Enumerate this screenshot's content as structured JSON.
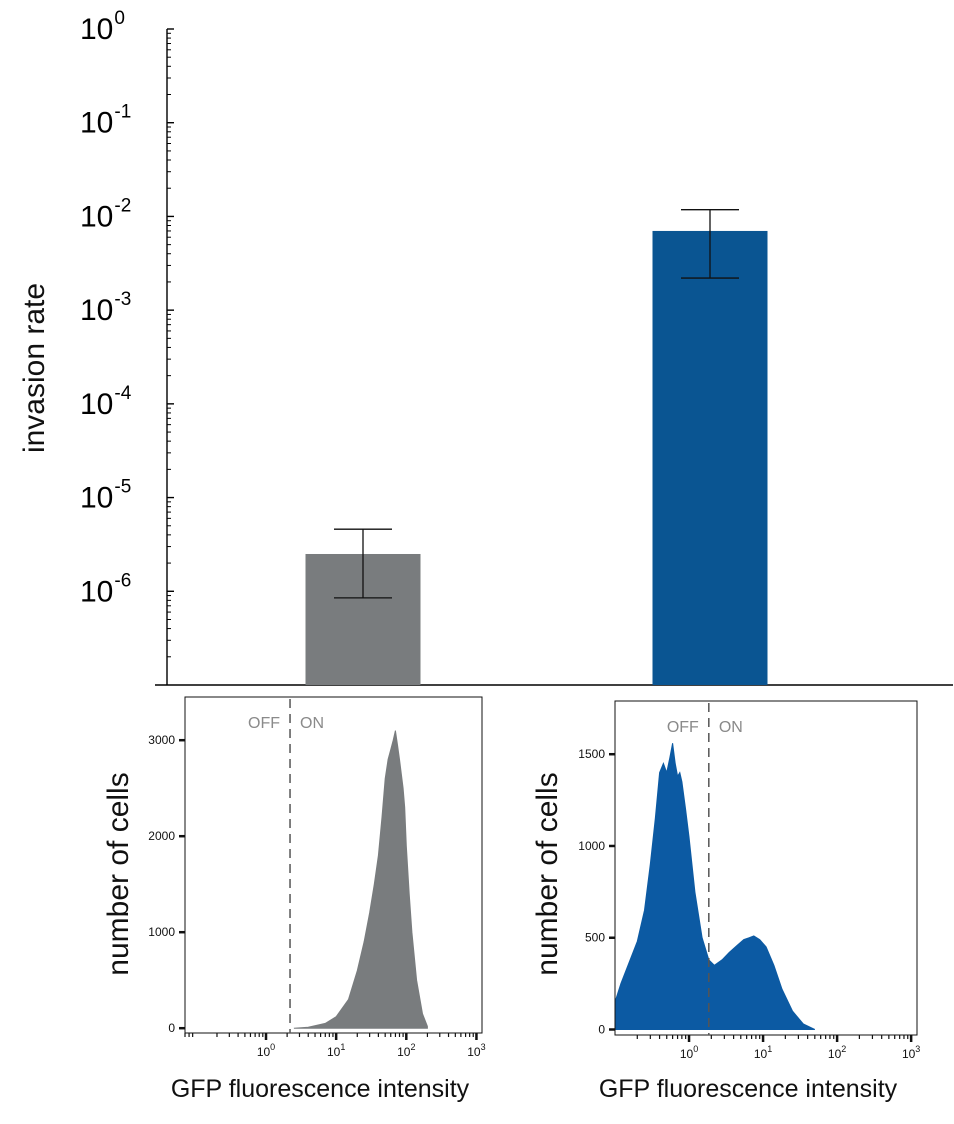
{
  "chart_data": [
    {
      "type": "bar",
      "ylabel": "invasion rate",
      "yscale": "log",
      "ylim": [
        1e-07,
        1
      ],
      "ytick_labels": [
        {
          "base": "10",
          "exp": "0"
        },
        {
          "base": "10",
          "exp": "-1"
        },
        {
          "base": "10",
          "exp": "-2"
        },
        {
          "base": "10",
          "exp": "-3"
        },
        {
          "base": "10",
          "exp": "-4"
        },
        {
          "base": "10",
          "exp": "-5"
        },
        {
          "base": "10",
          "exp": "-6"
        }
      ],
      "ytick_values": [
        1,
        0.1,
        0.01,
        0.001,
        0.0001,
        1e-05,
        1e-06
      ],
      "bars": [
        {
          "value": 2.5e-06,
          "err_low": 8.5e-07,
          "err_high": 4.6e-06,
          "color": "#797c7e"
        },
        {
          "value": 0.007,
          "err_low": 0.0022,
          "err_high": 0.0118,
          "color": "#0a5592"
        }
      ],
      "grid": false
    },
    {
      "type": "area",
      "xscale": "log",
      "xlim": [
        0.07,
        1200
      ],
      "ylim": [
        -50,
        3450
      ],
      "ylabel": "number of cells",
      "xlabel": "GFP fluorescence intensity",
      "ytick_labels": [
        "0",
        "1000",
        "2000",
        "3000"
      ],
      "ytick_values": [
        0,
        1000,
        2000,
        3000
      ],
      "xtick_labels": [
        {
          "base": "10",
          "exp": "0"
        },
        {
          "base": "10",
          "exp": "1"
        },
        {
          "base": "10",
          "exp": "2"
        },
        {
          "base": "10",
          "exp": "3"
        }
      ],
      "xtick_values": [
        1,
        10,
        100,
        1000
      ],
      "gate": {
        "x": 2.2,
        "left_label": "OFF",
        "right_label": "ON"
      },
      "color": "#797c7e",
      "x": [
        2.5,
        4,
        7,
        10,
        15,
        20,
        25,
        30,
        35,
        40,
        45,
        50,
        55,
        60,
        65,
        70,
        75,
        80,
        85,
        90,
        95,
        100,
        110,
        120,
        140,
        170,
        200
      ],
      "y": [
        0,
        10,
        50,
        120,
        300,
        600,
        900,
        1200,
        1500,
        1800,
        2200,
        2600,
        2800,
        2900,
        3000,
        3100,
        2950,
        2800,
        2650,
        2500,
        2300,
        1900,
        1400,
        1000,
        500,
        150,
        20
      ]
    },
    {
      "type": "area",
      "xscale": "log",
      "xlim": [
        0.1,
        1200
      ],
      "ylim": [
        -30,
        1790
      ],
      "ylabel": "number of cells",
      "xlabel": "GFP fluorescence intensity",
      "ytick_labels": [
        "0",
        "500",
        "1000",
        "1500"
      ],
      "ytick_values": [
        0,
        500,
        1000,
        1500
      ],
      "xtick_labels": [
        {
          "base": "10",
          "exp": "0"
        },
        {
          "base": "10",
          "exp": "1"
        },
        {
          "base": "10",
          "exp": "2"
        },
        {
          "base": "10",
          "exp": "3"
        }
      ],
      "xtick_values": [
        1,
        10,
        100,
        1000
      ],
      "gate": {
        "x": 1.85,
        "left_label": "OFF",
        "right_label": "ON"
      },
      "color": "#0c5aa3",
      "x": [
        0.1,
        0.12,
        0.15,
        0.2,
        0.25,
        0.3,
        0.35,
        0.4,
        0.45,
        0.5,
        0.55,
        0.6,
        0.65,
        0.7,
        0.75,
        0.8,
        0.9,
        1.0,
        1.2,
        1.5,
        1.85,
        2.2,
        2.8,
        3.5,
        4.5,
        5.5,
        6.5,
        7.5,
        9,
        11,
        14,
        18,
        25,
        35,
        50
      ],
      "y": [
        150,
        250,
        350,
        480,
        650,
        900,
        1150,
        1400,
        1450,
        1400,
        1480,
        1560,
        1450,
        1380,
        1400,
        1350,
        1200,
        1050,
        750,
        500,
        380,
        350,
        380,
        420,
        460,
        490,
        500,
        510,
        490,
        450,
        350,
        220,
        100,
        30,
        0
      ]
    }
  ]
}
